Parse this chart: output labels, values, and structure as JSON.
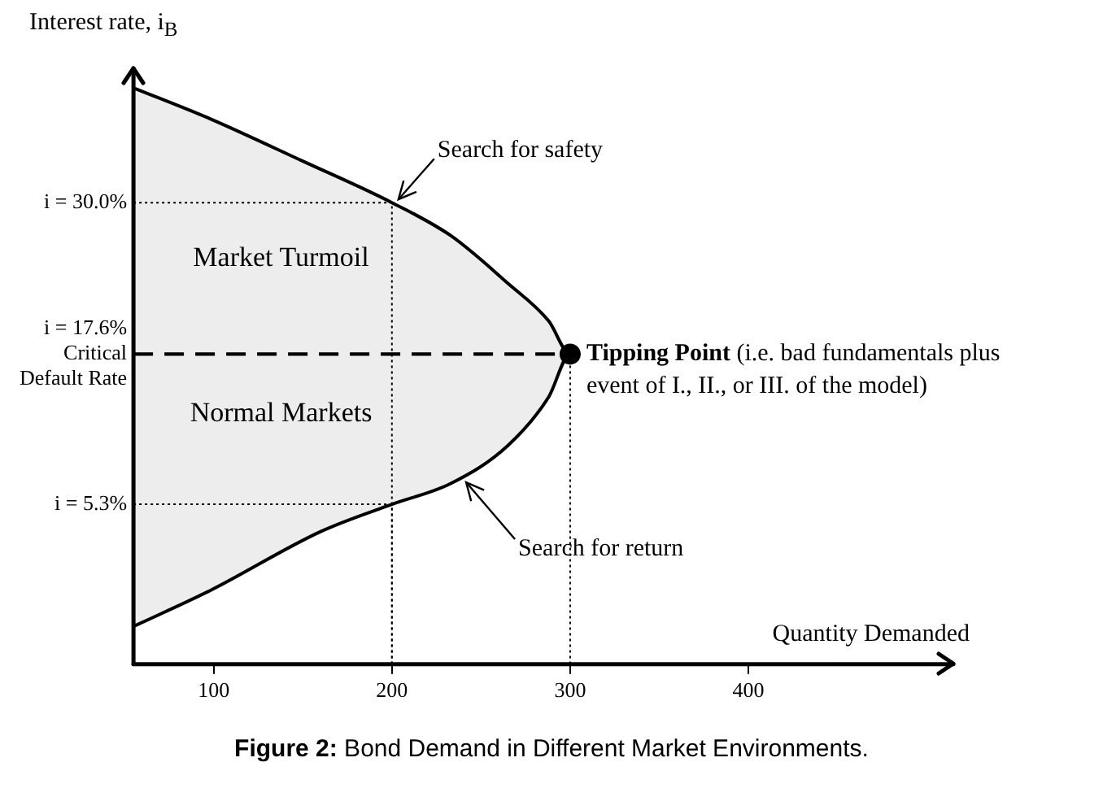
{
  "chart_data": {
    "type": "line",
    "title": "Figure 2: Bond Demand in Different Market Environments.",
    "xlabel": "Quantity Demanded",
    "ylabel": "Interest rate, i$_{B}$",
    "xlim": [
      55,
      515
    ],
    "xticks": [
      100,
      200,
      300,
      400
    ],
    "ylim": [
      -7.8,
      41
    ],
    "yticks": [
      {
        "value": 30,
        "label": "i = 30.0%"
      },
      {
        "value": 17.6,
        "label": "i = 17.6%\nCritical\nDefault Rate"
      },
      {
        "value": 5.3,
        "label": "i = 5.3%"
      }
    ],
    "legend": false,
    "series": [
      {
        "type": "area",
        "color": "#000000",
        "x": [
          55,
          97.5,
          150,
          200,
          233,
          265,
          288,
          300,
          288,
          265,
          233,
          200,
          160.5,
          97.5,
          55
        ],
        "values": [
          39.4,
          36.9,
          33.4,
          30,
          27.3,
          23.4,
          20.3,
          17.6,
          14.1,
          10.1,
          7.0,
          5.3,
          3.1,
          -1.8,
          -4.7
        ]
      },
      {
        "type": "line",
        "color": "#000000",
        "line_style": "dotted",
        "x": [
          55,
          200,
          200
        ],
        "values": [
          30,
          30,
          -7.8
        ]
      },
      {
        "type": "line",
        "color": "#000000",
        "line_style": "dotted",
        "x": [
          55,
          200,
          200
        ],
        "values": [
          5.3,
          5.3,
          -7.8
        ]
      },
      {
        "type": "line",
        "color": "#000000",
        "line_style": "dotted",
        "x": [
          300,
          300
        ],
        "values": [
          17.6,
          -7.8
        ]
      },
      {
        "type": "line",
        "color": "#000000",
        "line_style": "dashed",
        "x": [
          55,
          300
        ],
        "values": [
          17.6,
          17.6
        ]
      },
      {
        "type": "scatter",
        "name": "Tipping Point",
        "color": "#000000",
        "marker": "circle",
        "x": [
          300
        ],
        "values": [
          17.6
        ]
      }
    ],
    "annotations": [
      {
        "text": "Search for safety",
        "x": 200,
        "y": 30
      },
      {
        "text": "Search for return",
        "x": 238,
        "y": 7.5
      },
      "Market Turmoil",
      "Normal Markets",
      {
        "text": "(i.e. bad fundamentals plus event of I., II., or III. of the model)",
        "x": 300,
        "y": 17.6
      }
    ]
  }
}
